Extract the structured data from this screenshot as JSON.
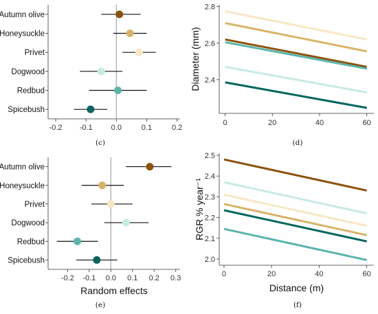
{
  "panel_labels": [
    "(c)",
    "(d)",
    "(e)",
    "(f)"
  ],
  "chart_data": [
    {
      "panel": "(c)",
      "type": "scatter",
      "subtype": "dot-and-whisker",
      "xlabel": "",
      "ylabel": "",
      "xlim": [
        -0.225,
        0.21
      ],
      "xticks": [
        "-0.2",
        "-0.1",
        "0.0",
        "0.1",
        "0.2"
      ],
      "xtick_values": [
        -0.2,
        -0.1,
        0.0,
        0.1,
        0.2
      ],
      "zero_line": 0,
      "grid": false,
      "points": [
        {
          "category": "Autumn olive",
          "value": 0.01,
          "low": -0.05,
          "high": 0.08,
          "color": "#8C510A"
        },
        {
          "category": "Honeysuckle",
          "value": 0.045,
          "low": -0.01,
          "high": 0.1,
          "color": "#D8B365"
        },
        {
          "category": "Privet",
          "value": 0.075,
          "low": 0.02,
          "high": 0.13,
          "color": "#F6E8C3"
        },
        {
          "category": "Dogwood",
          "value": -0.05,
          "low": -0.12,
          "high": 0.02,
          "color": "#C7EAE5"
        },
        {
          "category": "Redbud",
          "value": 0.005,
          "low": -0.09,
          "high": 0.1,
          "color": "#5AB4AC"
        },
        {
          "category": "Spicebush",
          "value": -0.085,
          "low": -0.14,
          "high": -0.03,
          "color": "#01665E"
        }
      ]
    },
    {
      "panel": "(d)",
      "type": "line",
      "xlabel": "",
      "ylabel": "Diameter (mm)",
      "xlim": [
        -2.5,
        63
      ],
      "ylim": [
        2.215,
        2.81
      ],
      "xticks": [
        "0",
        "20",
        "40",
        "60"
      ],
      "xtick_values": [
        0,
        20,
        40,
        60
      ],
      "yticks": [
        "2.4",
        "2.6",
        "2.8"
      ],
      "ytick_values": [
        2.4,
        2.6,
        2.8
      ],
      "grid": false,
      "series": [
        {
          "color": "#F6E8C3",
          "x": [
            0,
            60
          ],
          "y": [
            2.775,
            2.62
          ]
        },
        {
          "color": "#D8B365",
          "x": [
            0,
            60
          ],
          "y": [
            2.71,
            2.555
          ]
        },
        {
          "color": "#8C510A",
          "x": [
            0,
            60
          ],
          "y": [
            2.62,
            2.47
          ]
        },
        {
          "color": "#5AB4AC",
          "x": [
            0,
            60
          ],
          "y": [
            2.605,
            2.46
          ]
        },
        {
          "color": "#C7EAE5",
          "x": [
            0,
            60
          ],
          "y": [
            2.47,
            2.33
          ]
        },
        {
          "color": "#01665E",
          "x": [
            0,
            60
          ],
          "y": [
            2.385,
            2.245
          ]
        }
      ]
    },
    {
      "panel": "(e)",
      "type": "scatter",
      "subtype": "dot-and-whisker",
      "xlabel": "Random effects",
      "ylabel": "",
      "xlim": [
        -0.29,
        0.32
      ],
      "xticks": [
        "-0.2",
        "-0.1",
        "0.0",
        "0.1",
        "0.2",
        "0.3"
      ],
      "xtick_values": [
        -0.2,
        -0.1,
        0.0,
        0.1,
        0.2,
        0.3
      ],
      "zero_line": 0,
      "grid": false,
      "points": [
        {
          "category": "Autumn olive",
          "value": 0.18,
          "low": 0.07,
          "high": 0.28,
          "color": "#8C510A"
        },
        {
          "category": "Honeysuckle",
          "value": -0.04,
          "low": -0.135,
          "high": 0.06,
          "color": "#D8B365"
        },
        {
          "category": "Privet",
          "value": 0.0,
          "low": -0.09,
          "high": 0.1,
          "color": "#F6E8C3"
        },
        {
          "category": "Dogwood",
          "value": 0.07,
          "low": -0.03,
          "high": 0.175,
          "color": "#C7EAE5"
        },
        {
          "category": "Redbud",
          "value": -0.155,
          "low": -0.25,
          "high": -0.06,
          "color": "#5AB4AC"
        },
        {
          "category": "Spicebush",
          "value": -0.065,
          "low": -0.16,
          "high": 0.03,
          "color": "#01665E"
        }
      ]
    },
    {
      "panel": "(f)",
      "type": "line",
      "xlabel": "Distance (m)",
      "ylabel": "RGR % year⁻¹",
      "xlim": [
        -2,
        63
      ],
      "ylim": [
        1.97,
        2.51
      ],
      "xticks": [
        "0",
        "20",
        "40",
        "60"
      ],
      "xtick_values": [
        0,
        20,
        40,
        60
      ],
      "yticks": [
        "2.0",
        "2.1",
        "2.2",
        "2.3",
        "2.4",
        "2.5"
      ],
      "ytick_values": [
        2.0,
        2.1,
        2.2,
        2.3,
        2.4,
        2.5
      ],
      "grid": false,
      "series": [
        {
          "color": "#8C510A",
          "x": [
            0,
            60
          ],
          "y": [
            2.48,
            2.33
          ]
        },
        {
          "color": "#C7EAE5",
          "x": [
            0,
            60
          ],
          "y": [
            2.37,
            2.22
          ]
        },
        {
          "color": "#F6E8C3",
          "x": [
            0,
            60
          ],
          "y": [
            2.31,
            2.16
          ]
        },
        {
          "color": "#D8B365",
          "x": [
            0,
            60
          ],
          "y": [
            2.265,
            2.115
          ]
        },
        {
          "color": "#01665E",
          "x": [
            0,
            60
          ],
          "y": [
            2.235,
            2.085
          ]
        },
        {
          "color": "#5AB4AC",
          "x": [
            0,
            60
          ],
          "y": [
            2.145,
            1.995
          ]
        }
      ]
    }
  ]
}
